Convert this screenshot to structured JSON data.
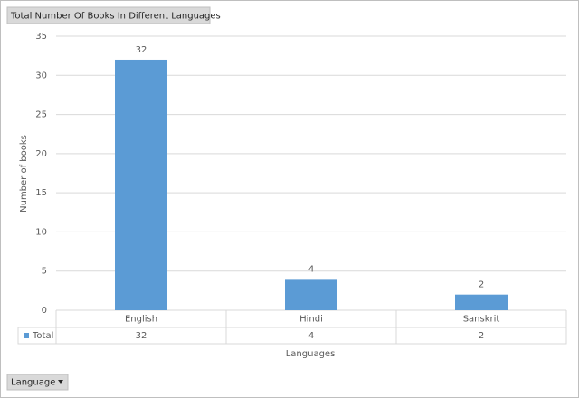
{
  "chart_data": {
    "type": "bar",
    "title": "Total Number Of Books In Different Languages",
    "categories": [
      "English",
      "Hindi",
      "Sanskrit"
    ],
    "series": [
      {
        "name": "Total",
        "color": "#5b9bd5",
        "values": [
          32,
          4,
          2
        ]
      }
    ],
    "ylim": [
      0,
      35
    ],
    "yticks": [
      0,
      5,
      10,
      15,
      20,
      25,
      30,
      35
    ],
    "grid": true,
    "x_label": "Languages",
    "y_label": "Number of books",
    "filter_button": "Language"
  }
}
